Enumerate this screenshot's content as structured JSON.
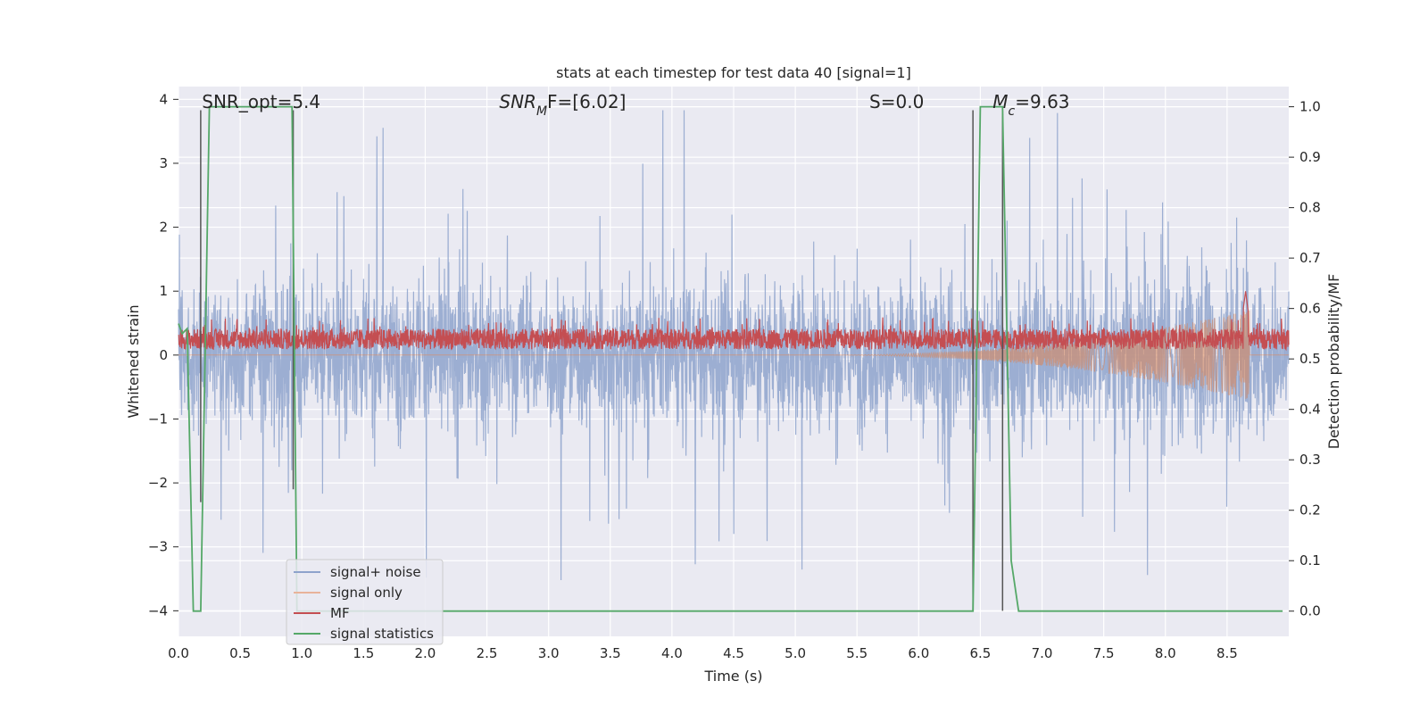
{
  "chart_data": {
    "type": "line",
    "title": "stats at each timestep for test data 40 [signal=1]",
    "xlabel": "Time (s)",
    "ylabel": "Whitened strain",
    "ylabel_right": "Detection probability/MF",
    "xlim": [
      0.0,
      9.0
    ],
    "ylim": [
      -4.4,
      4.2
    ],
    "ylim_right": [
      -0.05,
      1.04
    ],
    "x_ticks": [
      "0.0",
      "0.5",
      "1.0",
      "1.5",
      "2.0",
      "2.5",
      "3.0",
      "3.5",
      "4.0",
      "4.5",
      "5.0",
      "5.5",
      "6.0",
      "6.5",
      "7.0",
      "7.5",
      "8.0",
      "8.5"
    ],
    "x_tick_values": [
      0.0,
      0.5,
      1.0,
      1.5,
      2.0,
      2.5,
      3.0,
      3.5,
      4.0,
      4.5,
      5.0,
      5.5,
      6.0,
      6.5,
      7.0,
      7.5,
      8.0,
      8.5
    ],
    "y_ticks": [
      "4",
      "3",
      "2",
      "1",
      "0",
      "−1",
      "−2",
      "−3",
      "−4"
    ],
    "y_tick_values": [
      4,
      3,
      2,
      1,
      0,
      -1,
      -2,
      -3,
      -4
    ],
    "y_right_ticks": [
      "1.0",
      "0.9",
      "0.8",
      "0.7",
      "0.6",
      "0.5",
      "0.4",
      "0.3",
      "0.2",
      "0.1",
      "0.0"
    ],
    "y_right_tick_values": [
      1.0,
      0.9,
      0.8,
      0.7,
      0.6,
      0.5,
      0.4,
      0.3,
      0.2,
      0.1,
      0.0
    ],
    "grid": true,
    "legend_position": "lower-left",
    "series": [
      {
        "name": "signal+ noise",
        "color": "#8ea3cc",
        "axis": "left",
        "description_values": {
          "typical_range": [
            -1.5,
            1.5
          ],
          "extreme_range": [
            -4.0,
            3.83
          ],
          "duration_s": 9.0
        }
      },
      {
        "name": "signal only",
        "color": "#dd8452",
        "axis": "left",
        "chirp": {
          "start": 5.2,
          "end": 8.68,
          "peak_amplitude": 0.7
        }
      },
      {
        "name": "MF",
        "color": "#c44e52",
        "axis": "left",
        "description_values": {
          "baseline": 0.25,
          "typical_range": [
            0.0,
            0.5
          ],
          "spike_at": 8.65,
          "spike_value": 1.0
        }
      },
      {
        "name": "signal statistics",
        "color": "#55a868",
        "axis": "right",
        "x": [
          0.0,
          0.03,
          0.07,
          0.12,
          0.18,
          0.25,
          0.92,
          0.96,
          1.0,
          6.44,
          6.5,
          6.6,
          6.68,
          6.75,
          6.81,
          8.95
        ],
        "y": [
          0.57,
          0.55,
          0.56,
          0.0,
          0.0,
          1.0,
          1.0,
          0.0,
          0.0,
          0.0,
          1.0,
          1.0,
          1.0,
          0.1,
          0.0,
          0.0
        ]
      }
    ],
    "vertical_markers": [
      {
        "x": 0.18,
        "y_top": 3.83,
        "y_bottom": -2.3
      },
      {
        "x": 0.93,
        "y_top": 3.83,
        "y_bottom": -2.1
      },
      {
        "x": 6.44,
        "y_top": 3.83,
        "y_bottom": -4.0
      },
      {
        "x": 6.68,
        "y_top": 3.83,
        "y_bottom": -4.0
      }
    ],
    "annotations": [
      {
        "text": "SNR_opt=5.4",
        "x": 0.19
      },
      {
        "text": "SNR",
        "sub": "M",
        "suffix": "F=[6.02]",
        "x": 2.6
      },
      {
        "text": "S",
        "suffix": "=0.0",
        "x": 5.6
      },
      {
        "text": "M",
        "sub": "c",
        "suffix": "=9.63",
        "x": 6.6
      }
    ]
  }
}
